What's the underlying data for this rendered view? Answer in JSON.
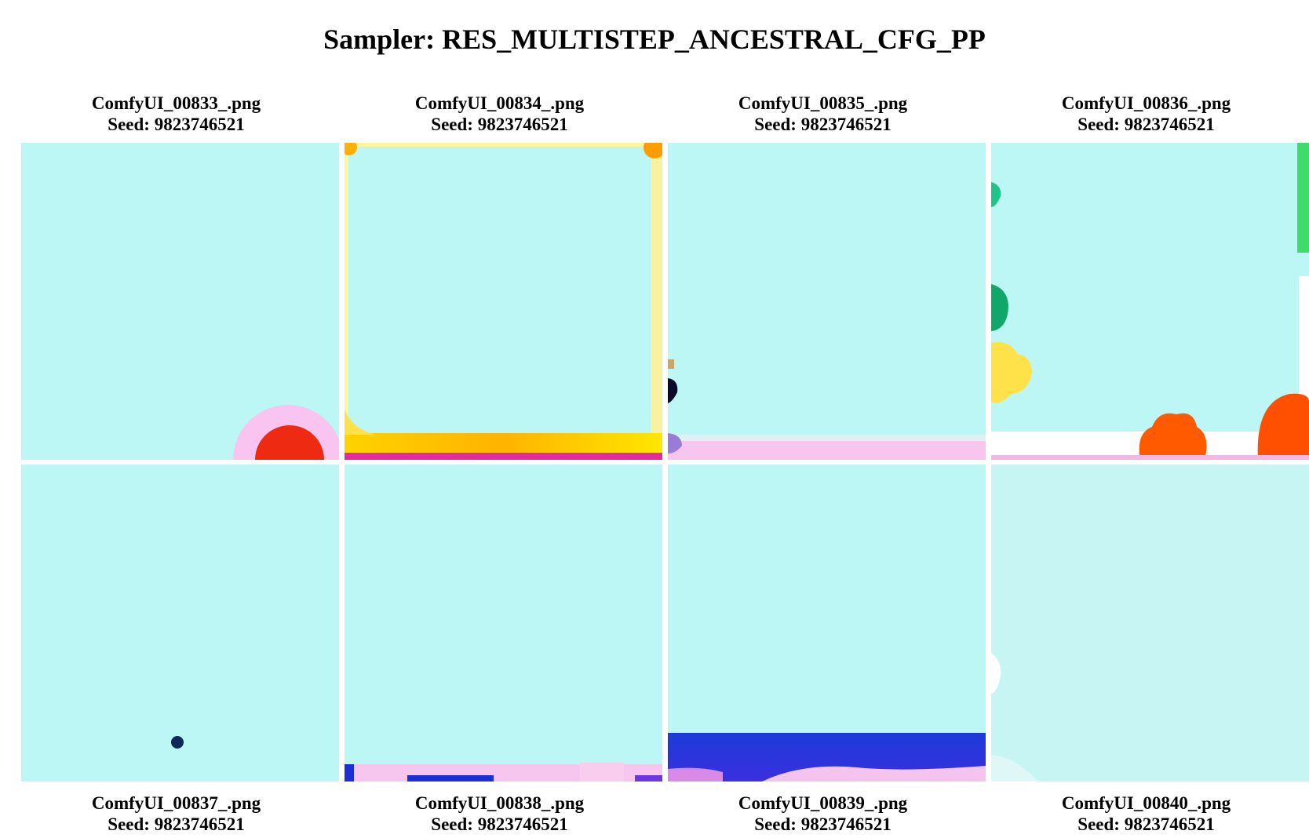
{
  "title": "Sampler: RES_MULTISTEP_ANCESTRAL_CFG_PP",
  "seed_label": "Seed: ",
  "images": [
    {
      "filename": "ComfyUI_00833_.png",
      "seed": "9823746521"
    },
    {
      "filename": "ComfyUI_00834_.png",
      "seed": "9823746521"
    },
    {
      "filename": "ComfyUI_00835_.png",
      "seed": "9823746521"
    },
    {
      "filename": "ComfyUI_00836_.png",
      "seed": "9823746521"
    },
    {
      "filename": "ComfyUI_00837_.png",
      "seed": "9823746521"
    },
    {
      "filename": "ComfyUI_00838_.png",
      "seed": "9823746521"
    },
    {
      "filename": "ComfyUI_00839_.png",
      "seed": "9823746521"
    },
    {
      "filename": "ComfyUI_00840_.png",
      "seed": "9823746521"
    }
  ],
  "colors": {
    "tile_background": "#bdf7f5",
    "caption_text": "#000000"
  }
}
